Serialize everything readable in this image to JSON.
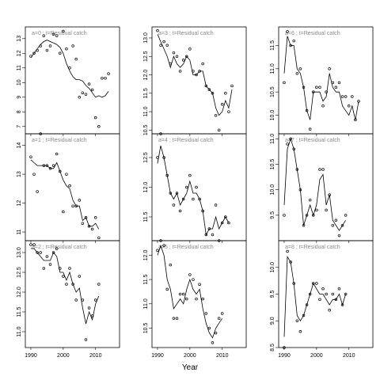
{
  "chart_data": {
    "type": "scatter",
    "xlabel": "Year",
    "x_ticks": [
      1990,
      2000,
      2010
    ],
    "panels": [
      {
        "title": "a=0 ; t=Residual catch",
        "ylim": [
          6.5,
          13.8
        ],
        "yticks": [
          7,
          8,
          9,
          10,
          11,
          12,
          13
        ],
        "x": [
          1990,
          1991,
          1992,
          1993,
          1994,
          1995,
          1996,
          1997,
          1998,
          1999,
          2000,
          2001,
          2002,
          2003,
          2004,
          2005,
          2006,
          2007,
          2008,
          2009,
          2010,
          2011,
          2012,
          2013,
          2014,
          2015,
          2016
        ],
        "points": [
          11.8,
          12.0,
          12.2,
          12.5,
          13.2,
          12.2,
          12.5,
          13.3,
          13.2,
          12.0,
          13.5,
          12.3,
          11.0,
          12.5,
          11.6,
          9.0,
          9.3,
          9.2,
          9.9,
          9.5,
          7.6,
          7.0,
          10.3,
          10.3,
          10.6,
          null,
          null
        ],
        "fit": [
          11.7,
          12.0,
          12.3,
          12.6,
          12.8,
          12.9,
          12.8,
          12.7,
          12.6,
          12.4,
          12.0,
          11.3,
          10.8,
          10.4,
          10.2,
          10.2,
          10.1,
          9.8,
          9.6,
          9.3,
          9.0,
          9.1,
          9.0,
          9.1,
          9.4,
          null,
          null
        ]
      },
      {
        "title": "a=3 ; t=Residual catch",
        "ylim": [
          10.4,
          13.3
        ],
        "yticks": [
          10.5,
          11.0,
          11.5,
          12.0,
          12.5,
          13.0
        ],
        "x": [
          1990,
          1991,
          1992,
          1993,
          1994,
          1995,
          1996,
          1997,
          1998,
          1999,
          2000,
          2001,
          2002,
          2003,
          2004,
          2005,
          2006,
          2007,
          2008,
          2009,
          2010,
          2011,
          2012,
          2013,
          2014,
          2015,
          2016
        ],
        "points": [
          13.2,
          12.8,
          12.9,
          12.8,
          12.3,
          12.6,
          12.5,
          12.1,
          12.4,
          12.5,
          12.7,
          12.1,
          12.0,
          12.1,
          12.3,
          11.7,
          11.6,
          11.5,
          10.9,
          10.5,
          11.2,
          11.5,
          11.0,
          11.7,
          null,
          null,
          null
        ],
        "fit": [
          13.1,
          12.9,
          12.7,
          12.5,
          12.2,
          12.5,
          12.3,
          12.2,
          12.3,
          12.5,
          12.4,
          12.0,
          12.0,
          12.1,
          12.1,
          11.7,
          11.6,
          11.5,
          11.1,
          10.9,
          11.0,
          11.3,
          11.1,
          11.6,
          null,
          null,
          null
        ]
      },
      {
        "title": "a=6 ; t=Residual catch",
        "ylim": [
          9.6,
          11.9
        ],
        "yticks": [
          10.0,
          10.5,
          11.0,
          11.5
        ],
        "x": [
          1990,
          1991,
          1992,
          1993,
          1994,
          1995,
          1996,
          1997,
          1998,
          1999,
          2000,
          2001,
          2002,
          2003,
          2004,
          2005,
          2006,
          2007,
          2008,
          2009,
          2010,
          2011,
          2012,
          2013,
          2014,
          2015,
          2016
        ],
        "points": [
          10.7,
          11.8,
          11.5,
          11.6,
          10.9,
          11.0,
          10.6,
          10.1,
          9.7,
          10.5,
          10.6,
          10.6,
          10.2,
          10.5,
          11.0,
          10.7,
          10.6,
          10.7,
          10.4,
          10.4,
          10.2,
          10.4,
          9.9,
          10.3,
          null,
          null,
          null
        ],
        "fit": [
          10.9,
          11.7,
          11.5,
          11.5,
          11.0,
          10.9,
          10.6,
          10.1,
          9.9,
          10.5,
          10.5,
          10.5,
          10.3,
          10.4,
          10.9,
          10.6,
          10.5,
          10.5,
          10.2,
          10.1,
          10.0,
          10.2,
          9.9,
          10.3,
          null,
          null,
          null
        ]
      },
      {
        "title": "a=1 ; t=Residual catch",
        "ylim": [
          10.7,
          14.4
        ],
        "yticks": [
          11.0,
          12.0,
          13.0,
          14.0
        ],
        "x": [
          1990,
          1991,
          1992,
          1993,
          1994,
          1995,
          1996,
          1997,
          1998,
          1999,
          2000,
          2001,
          2002,
          2003,
          2004,
          2005,
          2006,
          2007,
          2008,
          2009,
          2010,
          2011,
          2012,
          2013,
          2014,
          2015,
          2016
        ],
        "points": [
          13.6,
          13.0,
          12.4,
          14.4,
          13.3,
          13.3,
          13.2,
          13.3,
          13.7,
          13.1,
          11.7,
          13.0,
          12.6,
          11.9,
          11.9,
          12.1,
          11.3,
          11.5,
          11.2,
          11.1,
          11.5,
          10.8,
          null,
          null,
          null,
          null,
          null
        ],
        "fit": [
          13.5,
          13.4,
          13.3,
          13.3,
          13.3,
          13.3,
          13.2,
          13.2,
          13.4,
          13.1,
          12.8,
          12.6,
          12.5,
          12.1,
          11.9,
          11.9,
          11.4,
          11.5,
          11.2,
          11.2,
          11.3,
          11.1,
          null,
          null,
          null,
          null,
          null
        ]
      },
      {
        "title": "a=4 ; t=Residual catch",
        "ylim": [
          11.1,
          12.9
        ],
        "yticks": [
          11.5,
          12.0,
          12.5
        ],
        "x": [
          1990,
          1991,
          1992,
          1993,
          1994,
          1995,
          1996,
          1997,
          1998,
          1999,
          2000,
          2001,
          2002,
          2003,
          2004,
          2005,
          2006,
          2007,
          2008,
          2009,
          2010,
          2011,
          2012,
          2013,
          2014,
          2015,
          2016
        ],
        "points": [
          12.5,
          12.9,
          12.5,
          12.2,
          11.9,
          11.7,
          11.9,
          11.6,
          11.8,
          12.0,
          12.2,
          11.8,
          12.0,
          11.8,
          11.6,
          11.2,
          11.3,
          11.2,
          11.7,
          11.1,
          11.4,
          11.5,
          11.4,
          null,
          null,
          null,
          null
        ],
        "fit": [
          12.4,
          12.7,
          12.5,
          12.2,
          11.9,
          11.8,
          11.9,
          11.7,
          11.8,
          11.9,
          12.1,
          11.9,
          11.9,
          11.8,
          11.6,
          11.2,
          11.3,
          11.3,
          11.5,
          11.3,
          11.4,
          11.5,
          11.4,
          null,
          null,
          null,
          null
        ]
      },
      {
        "title": "a=7 ; t=Residual catch",
        "ylim": [
          9.0,
          11.1
        ],
        "yticks": [
          9.5,
          10.0,
          10.5,
          11.0
        ],
        "x": [
          1990,
          1991,
          1992,
          1993,
          1994,
          1995,
          1996,
          1997,
          1998,
          1999,
          2000,
          2001,
          2002,
          2003,
          2004,
          2005,
          2006,
          2007,
          2008,
          2009,
          2010,
          2011,
          2012,
          2013,
          2014,
          2015,
          2016
        ],
        "points": [
          9.5,
          10.9,
          11.0,
          10.8,
          10.4,
          10.0,
          9.3,
          9.5,
          9.8,
          9.5,
          9.6,
          10.4,
          10.4,
          9.6,
          9.9,
          9.3,
          9.4,
          9.1,
          9.3,
          9.5,
          null,
          null,
          null,
          null,
          null,
          null,
          null
        ],
        "fit": [
          9.7,
          10.8,
          11.0,
          10.8,
          10.4,
          10.0,
          9.3,
          9.5,
          9.7,
          9.5,
          9.7,
          10.2,
          10.3,
          9.7,
          9.9,
          9.4,
          9.3,
          9.2,
          9.3,
          9.4,
          null,
          null,
          null,
          null,
          null,
          null,
          null
        ]
      },
      {
        "title": "a=2 ; t=Residual catch",
        "ylim": [
          10.6,
          13.3
        ],
        "yticks": [
          11.0,
          11.5,
          12.0,
          12.5,
          13.0
        ],
        "x": [
          1990,
          1991,
          1992,
          1993,
          1994,
          1995,
          1996,
          1997,
          1998,
          1999,
          2000,
          2001,
          2002,
          2003,
          2004,
          2005,
          2006,
          2007,
          2008,
          2009,
          2010,
          2011,
          2012,
          2013,
          2014,
          2015,
          2016
        ],
        "points": [
          13.2,
          13.2,
          13.0,
          13.0,
          12.6,
          12.9,
          12.7,
          13.0,
          13.1,
          12.6,
          12.4,
          12.2,
          12.6,
          12.2,
          11.8,
          12.4,
          11.8,
          10.8,
          11.6,
          11.4,
          11.8,
          12.2,
          null,
          null,
          null,
          null,
          null
        ],
        "fit": [
          13.1,
          13.1,
          13.0,
          12.9,
          12.8,
          12.8,
          12.8,
          13.0,
          12.9,
          12.5,
          12.5,
          12.3,
          12.5,
          12.2,
          12.0,
          12.1,
          11.6,
          11.2,
          11.5,
          11.3,
          11.7,
          11.9,
          null,
          null,
          null,
          null,
          null
        ]
      },
      {
        "title": "a=5 ; t=Residual catch",
        "ylim": [
          10.1,
          12.3
        ],
        "yticks": [
          10.5,
          11.0,
          11.5,
          12.0
        ],
        "x": [
          1990,
          1991,
          1992,
          1993,
          1994,
          1995,
          1996,
          1997,
          1998,
          1999,
          2000,
          2001,
          2002,
          2003,
          2004,
          2005,
          2006,
          2007,
          2008,
          2009,
          2010,
          2011,
          2012,
          2013,
          2014,
          2015,
          2016
        ],
        "points": [
          12.1,
          12.3,
          12.2,
          11.3,
          11.8,
          10.7,
          10.7,
          11.2,
          11.2,
          11.1,
          11.6,
          11.5,
          11.1,
          11.4,
          11.1,
          10.8,
          10.5,
          10.2,
          10.4,
          10.7,
          10.8,
          null,
          null,
          null,
          null,
          null,
          null
        ],
        "fit": [
          12.0,
          12.2,
          12.0,
          11.5,
          11.3,
          10.9,
          11.0,
          11.1,
          11.0,
          11.3,
          11.5,
          11.3,
          11.2,
          11.3,
          10.9,
          10.6,
          10.4,
          10.3,
          10.5,
          10.6,
          10.7,
          null,
          null,
          null,
          null,
          null,
          null
        ]
      },
      {
        "title": "a=8 ; t=Residual catch",
        "ylim": [
          8.5,
          10.5
        ],
        "yticks": [
          8.5,
          9.0,
          9.5,
          10.0
        ],
        "x": [
          1990,
          1991,
          1992,
          1993,
          1994,
          1995,
          1996,
          1997,
          1998,
          1999,
          2000,
          2001,
          2002,
          2003,
          2004,
          2005,
          2006,
          2007,
          2008,
          2009,
          2010,
          2011,
          2012,
          2013,
          2014,
          2015,
          2016
        ],
        "points": [
          8.5,
          10.3,
          10.1,
          9.7,
          9.0,
          8.8,
          9.1,
          9.3,
          9.5,
          9.7,
          9.7,
          9.4,
          9.6,
          9.5,
          9.2,
          9.5,
          9.4,
          9.6,
          9.3,
          9.5,
          null,
          null,
          null,
          null,
          null,
          null,
          null
        ],
        "fit": [
          8.7,
          10.2,
          10.1,
          9.7,
          9.1,
          9.0,
          9.1,
          9.3,
          9.5,
          9.7,
          9.6,
          9.5,
          9.5,
          9.4,
          9.3,
          9.4,
          9.4,
          9.5,
          9.3,
          9.5,
          null,
          null,
          null,
          null,
          null,
          null,
          null
        ]
      }
    ]
  }
}
